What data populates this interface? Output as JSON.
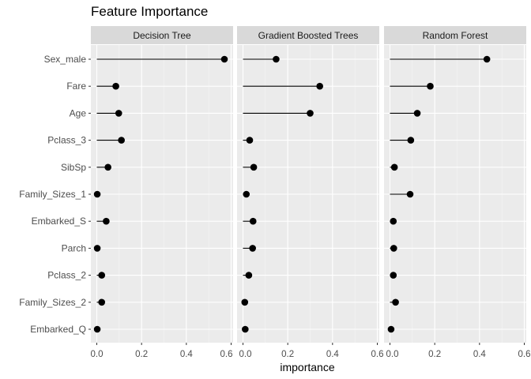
{
  "chart_data": {
    "type": "lollipop",
    "title": "Feature Importance",
    "xlabel": "importance",
    "ylabel": "",
    "xlim": [
      0,
      0.6
    ],
    "x_ticks": [
      "0.0",
      "0.2",
      "0.4",
      "0.6"
    ],
    "grid": true,
    "categories": [
      "Sex_male",
      "Fare",
      "Age",
      "Pclass_3",
      "SibSp",
      "Family_Sizes_1",
      "Embarked_S",
      "Parch",
      "Pclass_2",
      "Family_Sizes_2",
      "Embarked_Q"
    ],
    "panels": [
      {
        "name": "Decision Tree",
        "values": [
          0.57,
          0.085,
          0.098,
          0.11,
          0.05,
          0.002,
          0.042,
          0.002,
          0.022,
          0.022,
          0.002
        ]
      },
      {
        "name": "Gradient Boosted Trees",
        "values": [
          0.148,
          0.343,
          0.3,
          0.03,
          0.048,
          0.015,
          0.045,
          0.043,
          0.026,
          0.008,
          0.01
        ]
      },
      {
        "name": "Random Forest",
        "values": [
          0.433,
          0.18,
          0.122,
          0.093,
          0.02,
          0.09,
          0.015,
          0.017,
          0.015,
          0.025,
          0.005
        ]
      }
    ]
  },
  "colors": {
    "panel_bg": "#ebebeb",
    "strip_bg": "#d9d9d9",
    "grid_major": "#ffffff",
    "grid_minor": "#f5f5f5",
    "point": "#000000",
    "segment": "#000000"
  }
}
